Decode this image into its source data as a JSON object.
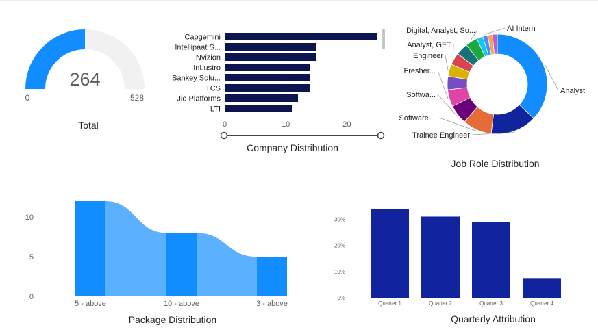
{
  "colors": {
    "gauge_fill": "#118DFF",
    "gauge_track": "#F1F1F1",
    "company_bar": "#0D1550",
    "ribbon_bar": "#118DFF",
    "ribbon_flow": "#5CB1FF",
    "quarter_bar": "#12239E"
  },
  "gauge": {
    "caption": "Total",
    "value": 264,
    "value_text": "264",
    "min": 0,
    "min_text": "0",
    "max": 528,
    "max_text": "528"
  },
  "charts": [
    {
      "id": "company",
      "type": "bar",
      "orientation": "horizontal",
      "caption": "Company Distribution",
      "categories": [
        "Capgemini",
        "Intellipaat S...",
        "Nvizion",
        "InLustro",
        "Sankey Solu...",
        "TCS",
        "Jio Platforms",
        "LTI"
      ],
      "values": [
        25,
        15,
        15,
        14,
        14,
        14,
        12,
        11
      ],
      "xlim": [
        0,
        25
      ],
      "ticks": [
        "0",
        "10",
        "20"
      ],
      "grid": true
    },
    {
      "id": "job_role",
      "type": "pie",
      "style": "donut",
      "caption": "Job Role Distribution",
      "labels": [
        "Analyst",
        "Trainee Engineer",
        "Software ...",
        "Softwa...",
        "Fresher...",
        "Engineer",
        "Analyst, GET",
        "Digital, Analyst, So...",
        "AI Intern"
      ],
      "slices": [
        {
          "label": "Analyst",
          "value": 94,
          "color": "#118DFF"
        },
        {
          "label": "Trainee Engineer",
          "value": 38,
          "color": "#12239E"
        },
        {
          "label": "Software ...",
          "value": 24,
          "color": "#E66C37"
        },
        {
          "label": "Softwa...",
          "value": 16,
          "color": "#6B007B"
        },
        {
          "label": "Fresher...",
          "value": 14,
          "color": "#E044A7"
        },
        {
          "label": "",
          "value": 11,
          "color": "#744EC2"
        },
        {
          "label": "Engineer",
          "value": 10,
          "color": "#D9B300"
        },
        {
          "label": "Analyst, GET",
          "value": 10,
          "color": "#D64550"
        },
        {
          "label": "",
          "value": 10,
          "color": "#197278"
        },
        {
          "label": "Digital, Analyst, So...",
          "value": 10,
          "color": "#1AAB40"
        },
        {
          "label": "",
          "value": 5,
          "color": "#15C6F4"
        },
        {
          "label": "AI Intern",
          "value": 4,
          "color": "#4092FF"
        },
        {
          "label": "",
          "value": 4,
          "color": "#FFA058"
        },
        {
          "label": "",
          "value": 4,
          "color": "#BE5DC9"
        }
      ]
    },
    {
      "id": "package",
      "type": "bar",
      "style": "ribbon",
      "caption": "Package Distribution",
      "categories": [
        "5 - above",
        "10 - above",
        "3 - above"
      ],
      "values": [
        12,
        8,
        5
      ],
      "ylim": [
        0,
        12
      ],
      "ticks": [
        "0",
        "5",
        "10"
      ]
    },
    {
      "id": "quarterly",
      "type": "bar",
      "caption": "Quarterly Attribution",
      "categories": [
        "Quarter 1",
        "Quarter 2",
        "Quarter 3",
        "Quarter 4"
      ],
      "values": [
        34,
        31,
        29,
        7.5
      ],
      "ylim": [
        0,
        34
      ],
      "ticks": [
        "0%",
        "10%",
        "20%",
        "30%"
      ]
    }
  ]
}
